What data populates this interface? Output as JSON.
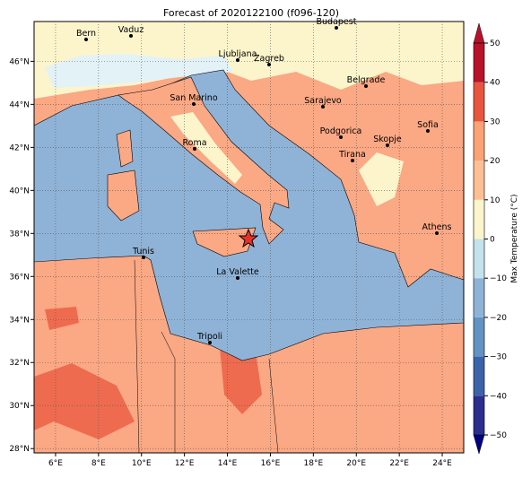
{
  "map": {
    "title": "Forecast of 2020122100 (f096-120)",
    "xlim": [
      5,
      25
    ],
    "ylim": [
      27.8,
      47.85
    ],
    "xticks": [
      {
        "value": 6,
        "label": "6°E"
      },
      {
        "value": 8,
        "label": "8°E"
      },
      {
        "value": 10,
        "label": "10°E"
      },
      {
        "value": 12,
        "label": "12°E"
      },
      {
        "value": 14,
        "label": "14°E"
      },
      {
        "value": 16,
        "label": "16°E"
      },
      {
        "value": 18,
        "label": "18°E"
      },
      {
        "value": 20,
        "label": "20°E"
      },
      {
        "value": 22,
        "label": "22°E"
      },
      {
        "value": 24,
        "label": "24°E"
      }
    ],
    "yticks": [
      {
        "value": 28,
        "label": "28°N"
      },
      {
        "value": 30,
        "label": "30°N"
      },
      {
        "value": 32,
        "label": "32°N"
      },
      {
        "value": 34,
        "label": "34°N"
      },
      {
        "value": 36,
        "label": "36°N"
      },
      {
        "value": 38,
        "label": "38°N"
      },
      {
        "value": 40,
        "label": "40°N"
      },
      {
        "value": 42,
        "label": "42°N"
      },
      {
        "value": 44,
        "label": "44°N"
      },
      {
        "value": 46,
        "label": "46°N"
      }
    ],
    "grid": true,
    "cities": [
      "Bern",
      "Vaduz",
      "Budapest",
      "Ljubljana",
      "Zagreb",
      "Belgrade",
      "Sarajevo",
      "San Marino",
      "Sofia",
      "Podgorica",
      "Skopje",
      "Roma",
      "Tirana",
      "Athens",
      "Tunis",
      "La Valette",
      "Tripoli"
    ],
    "colorbar": {
      "label": "Max Temperature (°C)",
      "lim": [
        -50,
        50
      ],
      "ticks": [
        {
          "value": -50,
          "label": "−50"
        },
        {
          "value": -40,
          "label": "−40"
        },
        {
          "value": -30,
          "label": "−30"
        },
        {
          "value": -20,
          "label": "−20"
        },
        {
          "value": -10,
          "label": "−10"
        },
        0,
        10,
        20,
        30,
        40,
        50
      ],
      "colors": [
        "#2b2d8f",
        "#3c63aa",
        "#6293c4",
        "#8fb3d7",
        "#c3e2ee",
        "#fcf5cb",
        "#fdbf94",
        "#fba277",
        "#e8553e",
        "#b8122b"
      ]
    }
  }
}
